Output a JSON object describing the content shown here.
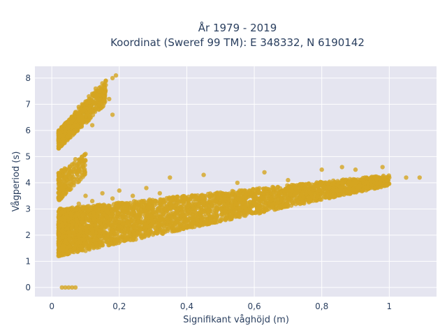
{
  "chart_data": {
    "type": "scatter",
    "title_lines": [
      "År 1979 - 2019",
      "Koordinat (Sweref 99 TM): E 348332, N 6190142"
    ],
    "xlabel": "Signifikant våghöjd (m)",
    "ylabel": "Vågperiod (s)",
    "xlim": [
      -0.05,
      1.14
    ],
    "ylim": [
      -0.35,
      8.45
    ],
    "x_ticks": [
      0,
      0.2,
      0.4,
      0.6,
      0.8,
      1
    ],
    "x_tick_labels": [
      "0",
      "0,2",
      "0,4",
      "0,6",
      "0,8",
      "1"
    ],
    "y_ticks": [
      0,
      1,
      2,
      3,
      4,
      5,
      6,
      7,
      8
    ],
    "y_tick_labels": [
      "0",
      "1",
      "2",
      "3",
      "4",
      "5",
      "6",
      "7",
      "8"
    ],
    "grid": true,
    "plot_background": "#e5e5f0",
    "marker_color": "#d4a521",
    "series": [
      {
        "name": "",
        "points": [
          [
            0.03,
            0.0
          ],
          [
            0.04,
            0.0
          ],
          [
            0.05,
            0.0
          ],
          [
            0.06,
            0.0
          ],
          [
            0.07,
            0.0
          ],
          [
            0.02,
            1.2
          ],
          [
            0.03,
            1.5
          ],
          [
            0.04,
            1.8
          ],
          [
            0.05,
            2.1
          ],
          [
            0.06,
            2.4
          ],
          [
            0.07,
            1.6
          ],
          [
            0.08,
            2.0
          ],
          [
            0.09,
            2.5
          ],
          [
            0.1,
            1.4
          ],
          [
            0.12,
            2.2
          ],
          [
            0.14,
            2.6
          ],
          [
            0.16,
            2.3
          ],
          [
            0.18,
            2.8
          ],
          [
            0.2,
            2.5
          ],
          [
            0.22,
            3.0
          ],
          [
            0.05,
            3.0
          ],
          [
            0.08,
            3.2
          ],
          [
            0.1,
            3.5
          ],
          [
            0.12,
            3.3
          ],
          [
            0.15,
            3.6
          ],
          [
            0.18,
            3.4
          ],
          [
            0.2,
            3.7
          ],
          [
            0.24,
            3.5
          ],
          [
            0.28,
            3.8
          ],
          [
            0.32,
            3.6
          ],
          [
            0.25,
            2.7
          ],
          [
            0.3,
            2.9
          ],
          [
            0.35,
            3.0
          ],
          [
            0.4,
            3.1
          ],
          [
            0.45,
            3.2
          ],
          [
            0.5,
            3.3
          ],
          [
            0.55,
            3.4
          ],
          [
            0.6,
            3.5
          ],
          [
            0.65,
            3.6
          ],
          [
            0.7,
            3.7
          ],
          [
            0.75,
            3.8
          ],
          [
            0.8,
            3.9
          ],
          [
            0.85,
            4.0
          ],
          [
            0.9,
            4.1
          ],
          [
            0.95,
            4.1
          ],
          [
            1.0,
            4.2
          ],
          [
            1.05,
            4.2
          ],
          [
            1.09,
            4.2
          ],
          [
            0.3,
            2.5
          ],
          [
            0.4,
            2.8
          ],
          [
            0.5,
            3.0
          ],
          [
            0.6,
            3.2
          ],
          [
            0.7,
            3.4
          ],
          [
            0.8,
            3.6
          ],
          [
            0.35,
            4.2
          ],
          [
            0.45,
            4.3
          ],
          [
            0.55,
            4.0
          ],
          [
            0.63,
            4.4
          ],
          [
            0.7,
            4.1
          ],
          [
            0.8,
            4.5
          ],
          [
            0.86,
            4.6
          ],
          [
            0.9,
            4.5
          ],
          [
            0.98,
            4.6
          ],
          [
            0.02,
            3.4
          ],
          [
            0.03,
            3.8
          ],
          [
            0.04,
            4.2
          ],
          [
            0.05,
            4.5
          ],
          [
            0.06,
            4.7
          ],
          [
            0.07,
            4.9
          ],
          [
            0.08,
            4.6
          ],
          [
            0.09,
            5.0
          ],
          [
            0.1,
            5.1
          ],
          [
            0.02,
            5.4
          ],
          [
            0.03,
            5.8
          ],
          [
            0.04,
            6.0
          ],
          [
            0.05,
            6.3
          ],
          [
            0.06,
            6.5
          ],
          [
            0.07,
            6.7
          ],
          [
            0.08,
            6.9
          ],
          [
            0.09,
            7.0
          ],
          [
            0.1,
            7.1
          ],
          [
            0.11,
            7.3
          ],
          [
            0.12,
            7.4
          ],
          [
            0.13,
            7.6
          ],
          [
            0.14,
            7.5
          ],
          [
            0.15,
            7.8
          ],
          [
            0.16,
            7.9
          ],
          [
            0.18,
            8.0
          ],
          [
            0.19,
            8.1
          ],
          [
            0.17,
            7.2
          ],
          [
            0.18,
            6.6
          ],
          [
            0.15,
            6.9
          ],
          [
            0.12,
            6.2
          ]
        ]
      }
    ],
    "dense_regions": [
      {
        "x_start": 0.02,
        "x_end": 1.0,
        "y_low_start": 1.2,
        "y_low_end": 3.9,
        "y_high_start": 3.0,
        "y_high_end": 4.3,
        "count": 3500
      },
      {
        "x_start": 0.02,
        "x_end": 0.16,
        "y_low_start": 5.3,
        "y_low_end": 7.0,
        "y_high_start": 6.0,
        "y_high_end": 7.9,
        "count": 600
      },
      {
        "x_start": 0.02,
        "x_end": 0.1,
        "y_low_start": 3.3,
        "y_low_end": 4.3,
        "y_high_start": 4.4,
        "y_high_end": 5.1,
        "count": 200
      }
    ]
  }
}
